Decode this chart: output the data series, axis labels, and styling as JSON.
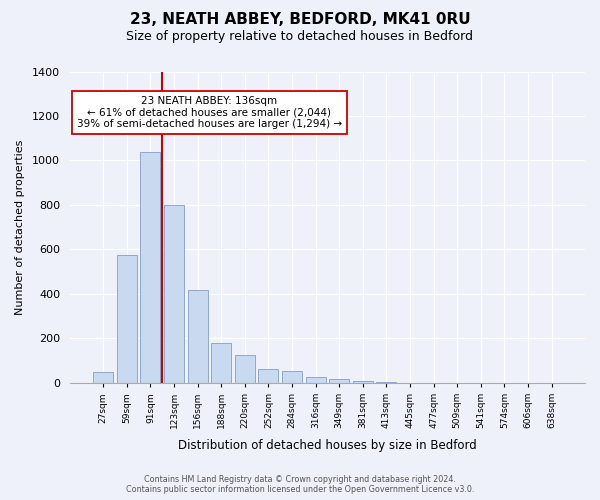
{
  "title": "23, NEATH ABBEY, BEDFORD, MK41 0RU",
  "subtitle": "Size of property relative to detached houses in Bedford",
  "xlabel": "Distribution of detached houses by size in Bedford",
  "ylabel": "Number of detached properties",
  "bar_values": [
    50,
    575,
    1040,
    800,
    420,
    180,
    125,
    62,
    55,
    25,
    20,
    10,
    5,
    2,
    1,
    0,
    0,
    0,
    0,
    0
  ],
  "bar_labels": [
    "27sqm",
    "59sqm",
    "91sqm",
    "123sqm",
    "156sqm",
    "188sqm",
    "220sqm",
    "252sqm",
    "284sqm",
    "316sqm",
    "349sqm",
    "381sqm",
    "413sqm",
    "445sqm",
    "477sqm",
    "509sqm",
    "541sqm",
    "574sqm",
    "606sqm",
    "638sqm"
  ],
  "bar_color": "#c8d9f0",
  "bar_edge_color": "#90a8cc",
  "vline_x": 2.5,
  "vline_color": "#cc0000",
  "annotation_title": "23 NEATH ABBEY: 136sqm",
  "annotation_line1": "← 61% of detached houses are smaller (2,044)",
  "annotation_line2": "39% of semi-detached houses are larger (1,294) →",
  "annotation_box_color": "#ffffff",
  "annotation_box_edge": "#cc0000",
  "ylim": [
    0,
    1400
  ],
  "yticks": [
    0,
    200,
    400,
    600,
    800,
    1000,
    1200,
    1400
  ],
  "footer_line1": "Contains HM Land Registry data © Crown copyright and database right 2024.",
  "footer_line2": "Contains public sector information licensed under the Open Government Licence v3.0.",
  "bg_color": "#eef1fa"
}
